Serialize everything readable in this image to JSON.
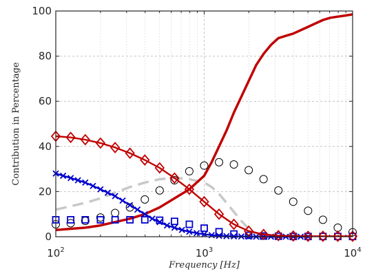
{
  "chart_data": {
    "type": "line",
    "title": "",
    "xlabel": "Frequency [Hz]",
    "ylabel": "Contribution in Percentage",
    "xscale": "log",
    "xlim": [
      100,
      10000
    ],
    "ylim": [
      0,
      100
    ],
    "grid": true,
    "legend": "none",
    "x_ticks": [
      {
        "value": 100,
        "base": "10",
        "exp": "2"
      },
      {
        "value": 1000,
        "base": "10",
        "exp": "3"
      },
      {
        "value": 10000,
        "base": "10",
        "exp": "4"
      }
    ],
    "y_ticks": [
      {
        "value": 0,
        "label": "0"
      },
      {
        "value": 20,
        "label": "20"
      },
      {
        "value": 40,
        "label": "40"
      },
      {
        "value": 60,
        "label": "60"
      },
      {
        "value": 80,
        "label": "80"
      },
      {
        "value": 100,
        "label": "100"
      }
    ],
    "series": [
      {
        "id": "solid-red",
        "style": "solid-line",
        "color": "#c00000",
        "x": [
          100,
          126,
          158,
          200,
          251,
          316,
          398,
          501,
          631,
          794,
          1000,
          1122,
          1259,
          1413,
          1585,
          1778,
          1995,
          2239,
          2512,
          2818,
          3162,
          3548,
          3981,
          4467,
          5012,
          5623,
          6310,
          7079,
          7943,
          8913,
          10000
        ],
        "values": [
          3,
          3.5,
          4,
          5,
          6.5,
          8,
          10,
          13,
          17,
          21,
          27,
          33,
          40,
          47,
          55,
          62,
          69,
          76,
          81,
          85,
          88,
          89,
          90,
          91.5,
          93,
          94.5,
          96,
          97,
          97.5,
          98,
          98.5
        ]
      },
      {
        "id": "dashed-gray",
        "style": "dashed-line",
        "color": "#c8c8c8",
        "x": [
          100,
          126,
          158,
          200,
          251,
          316,
          398,
          501,
          631,
          794,
          1000,
          1122,
          1259,
          1413,
          1585,
          1778,
          1995,
          2239,
          2512,
          2818,
          3162
        ],
        "values": [
          12,
          13.5,
          15,
          17,
          19.5,
          22,
          24,
          25.5,
          26,
          25.5,
          24,
          22,
          19,
          15,
          11,
          7,
          3.5,
          1.5,
          0.5,
          0,
          0
        ]
      },
      {
        "id": "circles-black",
        "style": "markers",
        "marker": "circle",
        "color": "#000000",
        "x": [
          100,
          126,
          158,
          200,
          251,
          316,
          398,
          501,
          631,
          794,
          1000,
          1259,
          1585,
          1995,
          2512,
          3162,
          3981,
          5012,
          6310,
          7943,
          10000
        ],
        "values": [
          5.5,
          6,
          7,
          8.5,
          10.5,
          13,
          16.5,
          20.5,
          25,
          29,
          31.5,
          33,
          32,
          29.5,
          25.5,
          20.5,
          15.5,
          11.5,
          7.5,
          4,
          2
        ]
      },
      {
        "id": "diamonds-red",
        "style": "line-markers",
        "marker": "diamond",
        "color": "#c00000",
        "x": [
          100,
          126,
          158,
          200,
          251,
          316,
          398,
          501,
          631,
          794,
          1000,
          1259,
          1585,
          1995,
          2512,
          3162,
          3981,
          5012,
          6310,
          7943,
          10000
        ],
        "values": [
          44.5,
          44,
          43,
          41.5,
          39.5,
          37,
          34,
          30.5,
          26,
          21,
          15.5,
          10,
          5.5,
          2.5,
          1,
          0.5,
          0.3,
          0.2,
          0.2,
          0.2,
          0.2
        ]
      },
      {
        "id": "crosses-blue",
        "style": "line-markers",
        "marker": "cross",
        "color": "#0000cc",
        "x": [
          100,
          112,
          126,
          141,
          158,
          178,
          200,
          224,
          251,
          282,
          316,
          355,
          398,
          447,
          501,
          562,
          631,
          708,
          794,
          891,
          1000,
          1122,
          1259,
          1413,
          1585,
          1778,
          1995,
          2239,
          2512,
          2818,
          3162,
          3548,
          3981,
          4467,
          5012
        ],
        "values": [
          28,
          27,
          26,
          25,
          24,
          22.5,
          21,
          19.5,
          18,
          16,
          14,
          12,
          10,
          8,
          6.5,
          5,
          4,
          3,
          2.2,
          1.6,
          1.1,
          0.7,
          0.4,
          0.25,
          0.15,
          0.1,
          0.05,
          0,
          0,
          0,
          0,
          0,
          0,
          0,
          0
        ]
      },
      {
        "id": "squares-blue",
        "style": "markers",
        "marker": "square",
        "color": "#0000cc",
        "x": [
          100,
          126,
          158,
          200,
          251,
          316,
          398,
          501,
          631,
          794,
          1000,
          1259,
          1585,
          1995,
          2512,
          3162,
          3981,
          5012,
          6310,
          7943,
          10000
        ],
        "values": [
          7.5,
          7.5,
          7.5,
          7.5,
          7.5,
          7.5,
          7.5,
          7.3,
          6.8,
          5.5,
          3.8,
          2.2,
          1.2,
          0.6,
          0.3,
          0.2,
          0.1,
          0.1,
          0.1,
          0.1,
          0.1
        ]
      }
    ]
  }
}
